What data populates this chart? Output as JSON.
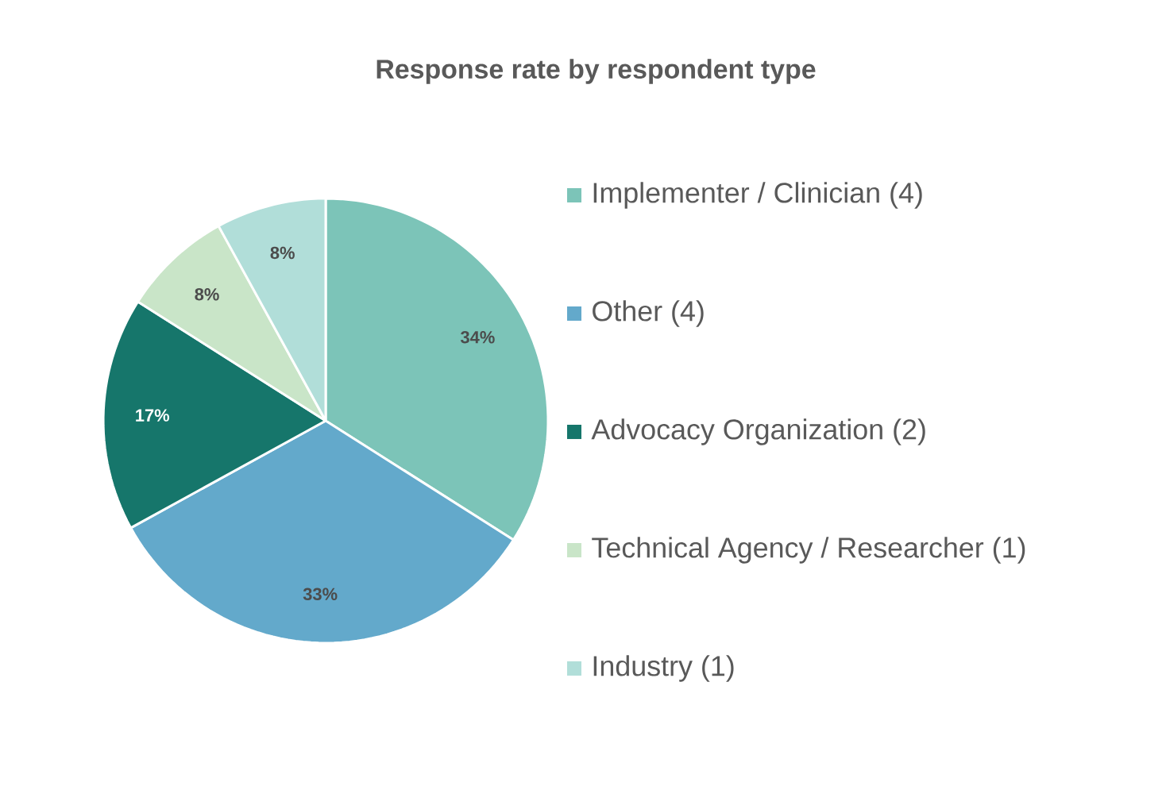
{
  "chart_data": {
    "type": "pie",
    "title": "Response rate by respondent type",
    "categories": [
      "Implementer / Clinician (4)",
      "Other (4)",
      "Advocacy Organization (2)",
      "Technical Agency / Researcher (1)",
      "Industry (1)"
    ],
    "values": [
      34,
      33,
      17,
      8,
      8
    ],
    "value_labels": [
      "34%",
      "33%",
      "17%",
      "8%",
      "8%"
    ],
    "colors": [
      "#7cc4b8",
      "#63a9cb",
      "#16766b",
      "#c9e5c8",
      "#b1ded9"
    ],
    "legend": "right"
  }
}
